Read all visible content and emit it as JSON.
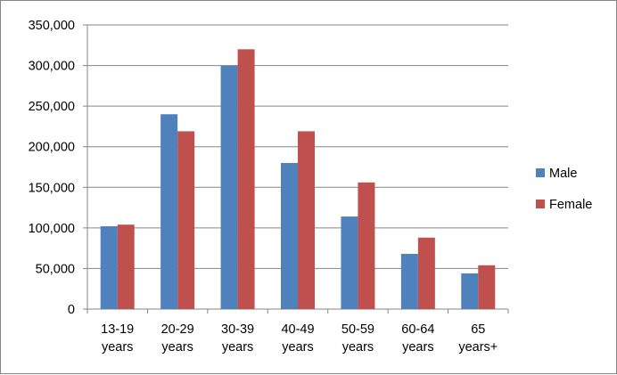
{
  "chart_data": {
    "type": "bar",
    "title": "",
    "xlabel": "",
    "ylabel": "",
    "ylim": [
      0,
      350000
    ],
    "y_ticks": [
      0,
      50000,
      100000,
      150000,
      200000,
      250000,
      300000,
      350000
    ],
    "y_tick_labels": [
      "0",
      "50,000",
      "100,000",
      "150,000",
      "200,000",
      "250,000",
      "300,000",
      "350,000"
    ],
    "categories": [
      [
        "13-19",
        "years"
      ],
      [
        "20-29",
        "years"
      ],
      [
        "30-39",
        "years"
      ],
      [
        "40-49",
        "years"
      ],
      [
        "50-59",
        "years"
      ],
      [
        "60-64",
        "years"
      ],
      [
        "65",
        "years+"
      ]
    ],
    "series": [
      {
        "name": "Male",
        "color": "#4F81BD",
        "values": [
          102000,
          240000,
          300000,
          180000,
          114000,
          68000,
          44000
        ]
      },
      {
        "name": "Female",
        "color": "#C0504D",
        "values": [
          104000,
          219000,
          320000,
          219000,
          156000,
          88000,
          54000
        ]
      }
    ],
    "grid": true,
    "legend_position": "right"
  }
}
